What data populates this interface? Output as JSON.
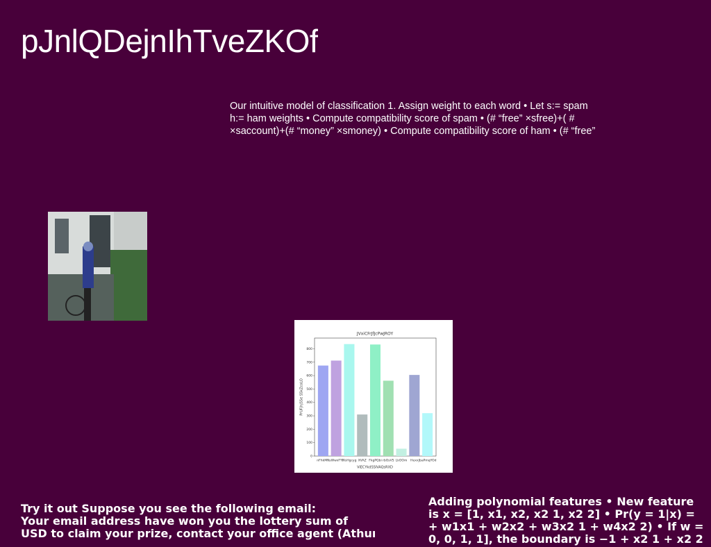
{
  "heading": "pJnlQDejnIhTveZKOf",
  "body_lines": [
    "Our intuitive model of classification 1. Assign weight to each word • Let s:= spam",
    "h:= ham weights • Compute compatibility score of spam • (# “free” ×sfree)+( #",
    "×saccount)+(# “money” ×smoney) • Compute compatibility score of ham • (# “free”"
  ],
  "footer_left": [
    "Try it out Suppose you see the following email:",
    "Your email address have won you the lottery sum of",
    "USD to claim your prize, contact your office agent (Athur"
  ],
  "footer_right": [
    "Adding polynomial features • New feature",
    "is x = [1, x1, x2, x2 1, x2 2] • Pr(y = 1|x) =",
    "+ w1x1 + w2x2 + w3x2 1 + w4x2 2) • If w =",
    "0, 0, 1, 1], the boundary is −1 + x2 1 + x2 2"
  ],
  "chart_data": {
    "type": "bar",
    "title": "JVxiCFrJfJcPwJROY",
    "x_label": "ViECYkdSSlVAQsRXD",
    "y_label": "PrUFjhjSSe S5kZcoLO",
    "categories": [
      "nFhkMN",
      "sWwxFYl",
      "WsHgcyg",
      "XVAZ",
      "FkgPQbi",
      "rbOsVS",
      "LkOOm",
      "Hexx",
      "JbaPmqYOd"
    ],
    "series": [
      {
        "name": "values",
        "colors": [
          "#9ea6f2",
          "#bfa2e0",
          "#a9f7ee",
          "#b0bcbc",
          "#8ff0c6",
          "#a0e0b2",
          "#c2f0e2",
          "#9fa6d2",
          "#b2f8fa"
        ],
        "values": [
          675,
          712,
          835,
          310,
          832,
          562,
          55,
          605,
          320
        ]
      }
    ],
    "ylim": [
      0,
      880
    ],
    "yticks": [
      0,
      100,
      200,
      300,
      400,
      500,
      600,
      700,
      800
    ]
  }
}
